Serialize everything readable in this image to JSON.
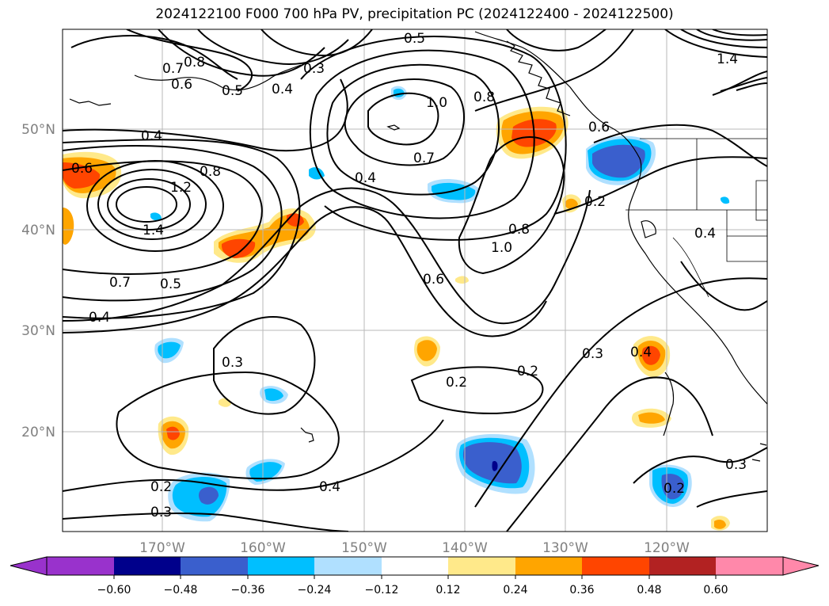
{
  "title": "2024122100 F000 700 hPa PV, precipitation PC (2024122400 - 2024122500)",
  "latitude_labels": [
    "50°N",
    "40°N",
    "30°N",
    "20°N"
  ],
  "longitude_labels": [
    "170°W",
    "160°W",
    "150°W",
    "140°W",
    "130°W",
    "120°W"
  ],
  "contour_labels": [
    "0.8",
    "0.7",
    "0.6",
    "0.5",
    "0.4",
    "0.3",
    "0.5",
    "0.4",
    "1.0",
    "0.8",
    "0.6",
    "0.6",
    "0.4",
    "0.8",
    "1.2",
    "1.4",
    "0.7",
    "0.5",
    "0.4",
    "0.4",
    "0.7",
    "0.8",
    "1.0",
    "0.6",
    "0.2",
    "0.4",
    "0.3",
    "0.2",
    "0.2",
    "0.3",
    "0.4",
    "0.2",
    "0.3",
    "0.2",
    "0.3",
    "1.4"
  ],
  "colorbar": {
    "ticks": [
      "−0.60",
      "−0.48",
      "−0.36",
      "−0.24",
      "−0.12",
      "0.12",
      "0.24",
      "0.36",
      "0.48",
      "0.60"
    ],
    "colors": [
      "#9932cc",
      "#00008b",
      "#3a5fcd",
      "#00bfff",
      "#b0e0ff",
      "#ffffff",
      "#ffe98a",
      "#ffa500",
      "#ff4500",
      "#b22222",
      "#ff88aa"
    ]
  }
}
